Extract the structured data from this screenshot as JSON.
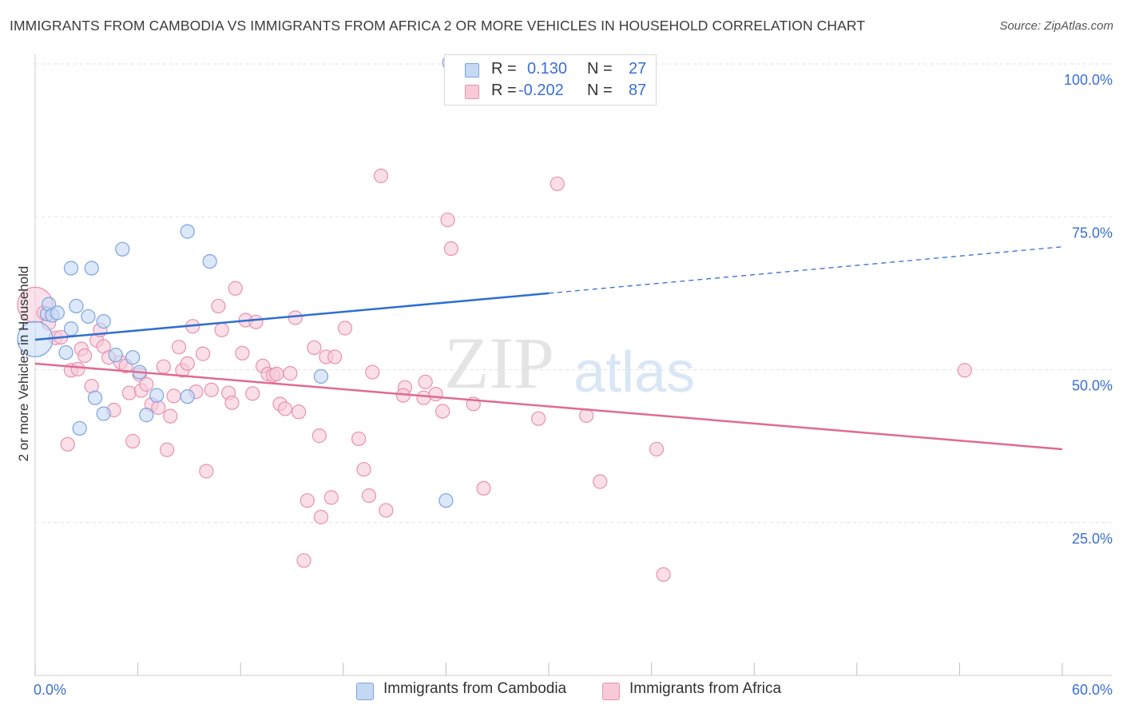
{
  "title": "IMMIGRANTS FROM CAMBODIA VS IMMIGRANTS FROM AFRICA 2 OR MORE VEHICLES IN HOUSEHOLD CORRELATION CHART",
  "source": "Source: ZipAtlas.com",
  "watermark": {
    "zip": "ZIP",
    "atlas": "atlas"
  },
  "colors": {
    "cambodia_fill": "#c5d9f5",
    "cambodia_stroke": "#7aa3e0",
    "cambodia_line": "#2d6fd0",
    "africa_fill": "#f8cad8",
    "africa_stroke": "#e891ae",
    "africa_line": "#e06a94",
    "tick_label": "#3b6fd0"
  },
  "legend": {
    "rows": [
      {
        "r_label": "R =",
        "r_value": "0.130",
        "n_label": "N =",
        "n_value": "27"
      },
      {
        "r_label": "R =",
        "r_value": "-0.202",
        "n_label": "N =",
        "n_value": "87"
      }
    ]
  },
  "bottom_legend": {
    "cambodia": "Immigrants from Cambodia",
    "africa": "Immigrants from Africa"
  },
  "chart_data": {
    "type": "scatter",
    "xlabel": "",
    "ylabel": "2 or more Vehicles in Household",
    "xlim": [
      0,
      60
    ],
    "ylim": [
      0,
      100
    ],
    "x_tick_labels": [
      "0.0%",
      "60.0%"
    ],
    "y_tick_labels": [
      "25.0%",
      "50.0%",
      "75.0%",
      "100.0%"
    ],
    "y_ticks": [
      25,
      50,
      75,
      100
    ],
    "grid": "horizontal dashed",
    "legend_position": "top-center",
    "series": [
      {
        "name": "Immigrants from Cambodia",
        "r": 0.13,
        "n": 27,
        "trend": {
          "x": [
            0,
            30,
            60
          ],
          "y": [
            54.9,
            62.5,
            70.1
          ],
          "solid_until": 30
        },
        "points": [
          {
            "x": 0.0,
            "y": 55.0,
            "big": true
          },
          {
            "x": 0.7,
            "y": 59.1
          },
          {
            "x": 0.8,
            "y": 60.7
          },
          {
            "x": 1.0,
            "y": 58.9
          },
          {
            "x": 1.3,
            "y": 59.3
          },
          {
            "x": 2.1,
            "y": 66.6
          },
          {
            "x": 1.8,
            "y": 52.8
          },
          {
            "x": 2.1,
            "y": 56.7
          },
          {
            "x": 2.4,
            "y": 60.4
          },
          {
            "x": 3.1,
            "y": 58.7
          },
          {
            "x": 3.3,
            "y": 66.6
          },
          {
            "x": 4.0,
            "y": 57.9
          },
          {
            "x": 4.7,
            "y": 52.4
          },
          {
            "x": 5.1,
            "y": 69.7
          },
          {
            "x": 5.7,
            "y": 52.0
          },
          {
            "x": 6.1,
            "y": 49.6
          },
          {
            "x": 3.5,
            "y": 45.4
          },
          {
            "x": 4.0,
            "y": 42.8
          },
          {
            "x": 2.6,
            "y": 40.4
          },
          {
            "x": 6.5,
            "y": 42.6
          },
          {
            "x": 7.1,
            "y": 45.8
          },
          {
            "x": 8.9,
            "y": 72.6
          },
          {
            "x": 10.2,
            "y": 67.7
          },
          {
            "x": 8.9,
            "y": 45.6
          },
          {
            "x": 16.7,
            "y": 48.9
          },
          {
            "x": 24.2,
            "y": 100.2
          },
          {
            "x": 24.0,
            "y": 28.6
          }
        ]
      },
      {
        "name": "Immigrants from Africa",
        "r": -0.202,
        "n": 87,
        "trend": {
          "x": [
            0,
            60
          ],
          "y": [
            51.0,
            37.0
          ]
        },
        "points": [
          {
            "x": 0.0,
            "y": 60.6,
            "big": true
          },
          {
            "x": 0.5,
            "y": 59.3
          },
          {
            "x": 0.8,
            "y": 57.6
          },
          {
            "x": 1.2,
            "y": 55.2
          },
          {
            "x": 1.5,
            "y": 55.3
          },
          {
            "x": 1.9,
            "y": 37.8
          },
          {
            "x": 2.1,
            "y": 49.9
          },
          {
            "x": 2.5,
            "y": 50.1
          },
          {
            "x": 2.7,
            "y": 53.4
          },
          {
            "x": 2.9,
            "y": 52.3
          },
          {
            "x": 3.3,
            "y": 47.3
          },
          {
            "x": 3.6,
            "y": 54.8
          },
          {
            "x": 3.8,
            "y": 56.5
          },
          {
            "x": 4.0,
            "y": 53.8
          },
          {
            "x": 4.3,
            "y": 52.0
          },
          {
            "x": 4.6,
            "y": 43.4
          },
          {
            "x": 5.0,
            "y": 51.2
          },
          {
            "x": 5.3,
            "y": 50.6
          },
          {
            "x": 5.5,
            "y": 46.2
          },
          {
            "x": 5.7,
            "y": 38.3
          },
          {
            "x": 6.1,
            "y": 49.2
          },
          {
            "x": 6.2,
            "y": 46.6
          },
          {
            "x": 6.5,
            "y": 47.6
          },
          {
            "x": 6.8,
            "y": 44.3
          },
          {
            "x": 7.2,
            "y": 43.8
          },
          {
            "x": 7.5,
            "y": 50.5
          },
          {
            "x": 7.7,
            "y": 36.9
          },
          {
            "x": 7.9,
            "y": 42.4
          },
          {
            "x": 8.1,
            "y": 45.7
          },
          {
            "x": 8.4,
            "y": 53.7
          },
          {
            "x": 8.6,
            "y": 49.9
          },
          {
            "x": 8.9,
            "y": 51.0
          },
          {
            "x": 9.2,
            "y": 57.1
          },
          {
            "x": 9.4,
            "y": 46.4
          },
          {
            "x": 9.8,
            "y": 52.6
          },
          {
            "x": 10.0,
            "y": 33.4
          },
          {
            "x": 10.3,
            "y": 46.7
          },
          {
            "x": 10.7,
            "y": 60.4
          },
          {
            "x": 10.9,
            "y": 56.5
          },
          {
            "x": 11.3,
            "y": 46.2
          },
          {
            "x": 11.5,
            "y": 44.6
          },
          {
            "x": 11.7,
            "y": 63.3
          },
          {
            "x": 12.1,
            "y": 52.7
          },
          {
            "x": 12.3,
            "y": 58.1
          },
          {
            "x": 12.7,
            "y": 46.1
          },
          {
            "x": 12.9,
            "y": 57.8
          },
          {
            "x": 13.3,
            "y": 50.6
          },
          {
            "x": 13.6,
            "y": 49.3
          },
          {
            "x": 13.9,
            "y": 49.1
          },
          {
            "x": 14.1,
            "y": 49.3
          },
          {
            "x": 14.3,
            "y": 44.4
          },
          {
            "x": 14.6,
            "y": 43.6
          },
          {
            "x": 14.9,
            "y": 49.4
          },
          {
            "x": 15.2,
            "y": 58.5
          },
          {
            "x": 15.4,
            "y": 43.1
          },
          {
            "x": 15.7,
            "y": 18.8
          },
          {
            "x": 15.9,
            "y": 28.6
          },
          {
            "x": 16.3,
            "y": 53.6
          },
          {
            "x": 16.6,
            "y": 39.2
          },
          {
            "x": 16.7,
            "y": 25.9
          },
          {
            "x": 17.0,
            "y": 52.1
          },
          {
            "x": 17.3,
            "y": 29.1
          },
          {
            "x": 17.5,
            "y": 52.1
          },
          {
            "x": 18.1,
            "y": 56.8
          },
          {
            "x": 18.9,
            "y": 38.7
          },
          {
            "x": 19.2,
            "y": 33.7
          },
          {
            "x": 19.5,
            "y": 29.4
          },
          {
            "x": 19.7,
            "y": 49.6
          },
          {
            "x": 20.2,
            "y": 81.7
          },
          {
            "x": 20.5,
            "y": 27.0
          },
          {
            "x": 21.6,
            "y": 47.1
          },
          {
            "x": 22.7,
            "y": 45.4
          },
          {
            "x": 22.8,
            "y": 48.0
          },
          {
            "x": 23.4,
            "y": 46.0
          },
          {
            "x": 23.8,
            "y": 43.2
          },
          {
            "x": 24.1,
            "y": 74.5
          },
          {
            "x": 24.3,
            "y": 69.8
          },
          {
            "x": 25.6,
            "y": 44.4
          },
          {
            "x": 26.2,
            "y": 30.6
          },
          {
            "x": 29.4,
            "y": 42.0
          },
          {
            "x": 30.5,
            "y": 80.4
          },
          {
            "x": 32.2,
            "y": 42.5
          },
          {
            "x": 33.0,
            "y": 31.7
          },
          {
            "x": 36.3,
            "y": 37.0
          },
          {
            "x": 36.7,
            "y": 16.5
          },
          {
            "x": 54.3,
            "y": 49.9
          },
          {
            "x": 21.5,
            "y": 45.8
          }
        ]
      }
    ]
  }
}
